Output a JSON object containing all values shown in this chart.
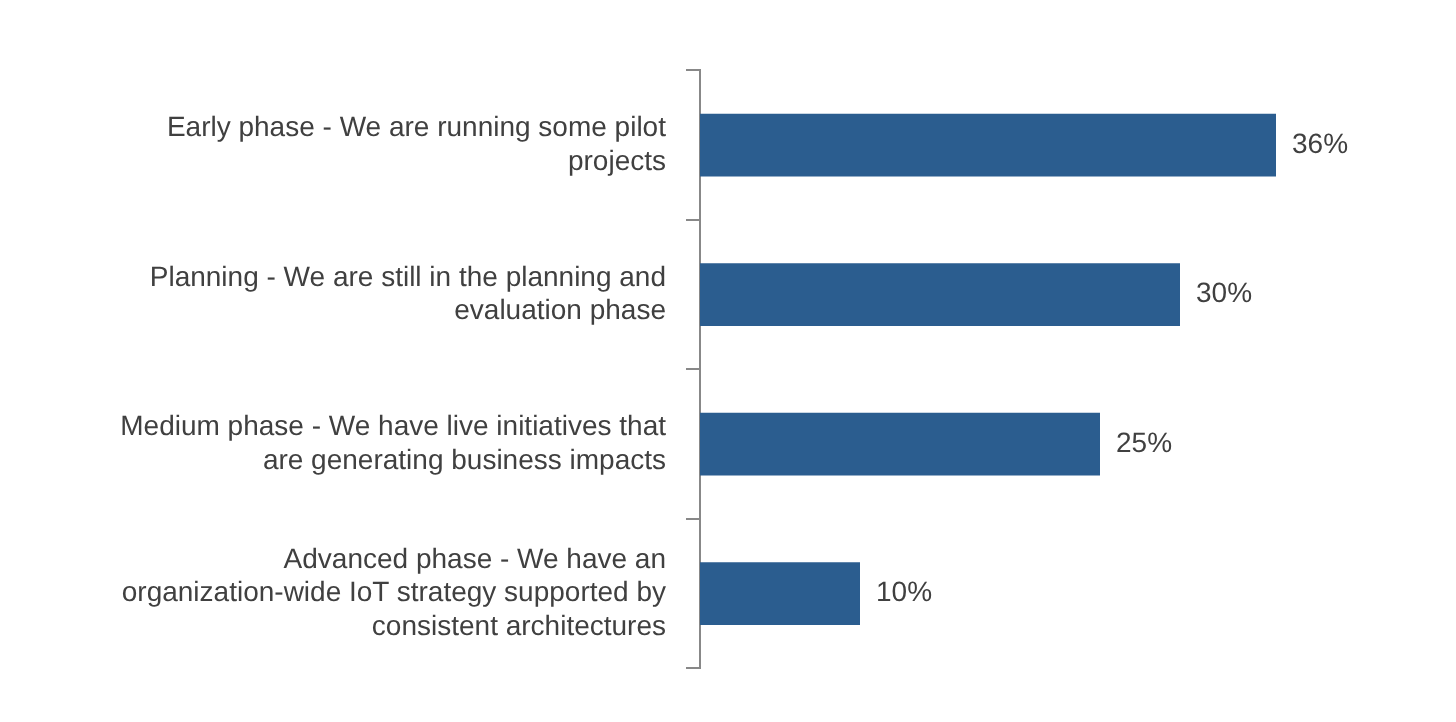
{
  "chart_data": {
    "type": "bar",
    "orientation": "horizontal",
    "categories": [
      "Early phase - We are running some pilot projects",
      "Planning - We are still in the planning and evaluation phase",
      "Medium phase - We have live initiatives that are generating business impacts",
      "Advanced phase - We have an organization-wide IoT strategy supported by consistent architectures"
    ],
    "values": [
      36,
      30,
      25,
      10
    ],
    "color": "#2b5d8f",
    "value_labels": [
      "36%",
      "30%",
      "25%",
      "10%"
    ],
    "legend": false
  }
}
